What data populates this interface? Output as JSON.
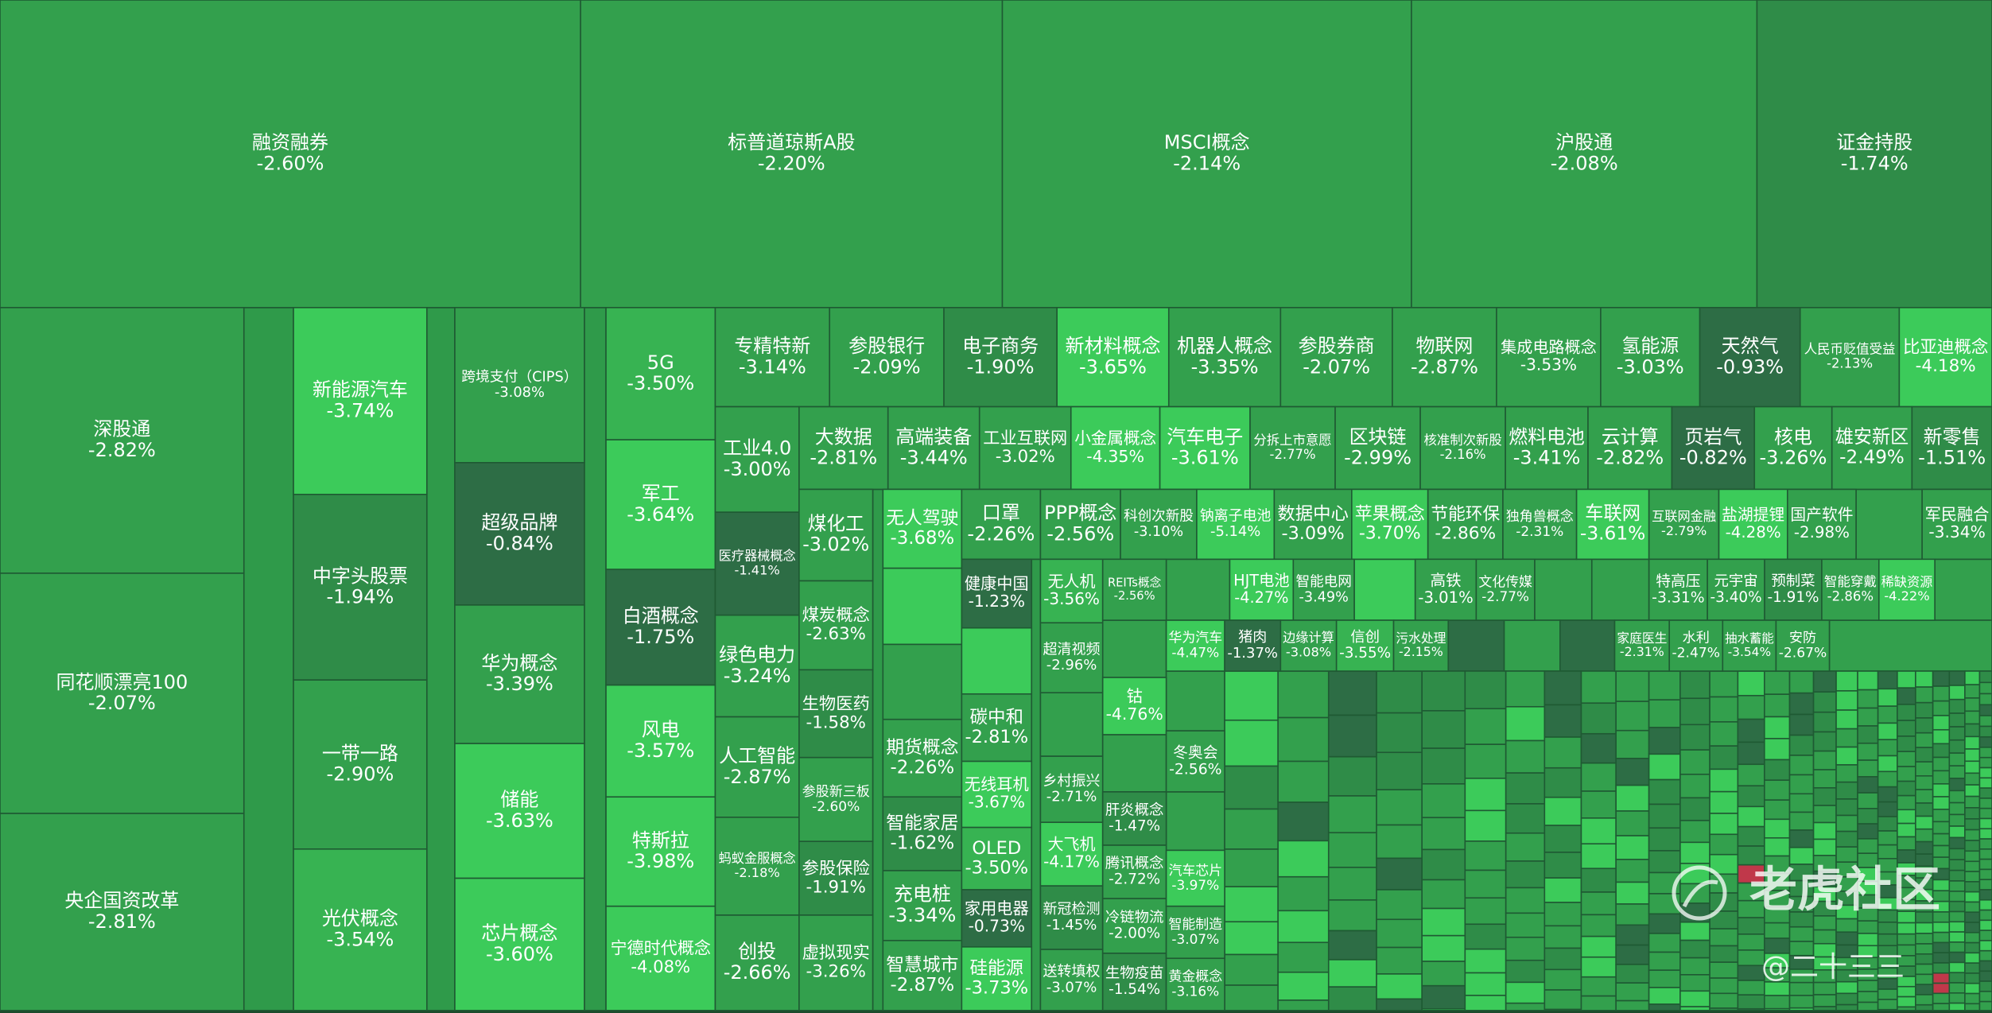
{
  "chart_data": {
    "type": "treemap",
    "categories": [
      "融资融券",
      "标普道琼斯A股",
      "MSCI概念",
      "沪股通",
      "证金持股",
      "深股通",
      "同花顺漂亮100",
      "央企国资改革",
      "新能源汽车",
      "中字头股票",
      "一带一路",
      "光伏概念",
      "跨境支付（CIPS）",
      "超级品牌",
      "华为概念",
      "储能",
      "芯片概念",
      "5G",
      "军工",
      "白酒概念",
      "风电",
      "特斯拉",
      "宁德时代概念",
      "专精特新",
      "参股银行",
      "电子商务",
      "新材料概念",
      "机器人概念",
      "参股券商",
      "物联网",
      "集成电路概念",
      "氢能源",
      "天然气",
      "人民币贬值受益",
      "比亚迪概念",
      "工业4.0",
      "医疗器械概念",
      "绿色电力",
      "人工智能",
      "蚂蚁金服概念",
      "创投",
      "大数据",
      "高端装备",
      "工业互联网",
      "小金属概念",
      "汽车电子",
      "分拆上市意愿",
      "区块链",
      "核准制次新股",
      "燃料电池",
      "云计算",
      "页岩气",
      "核电",
      "雄安新区",
      "新零售",
      "煤化工",
      "煤炭概念",
      "生物医药",
      "参股新三板",
      "参股保险",
      "虚拟现实",
      "无人驾驶",
      "期货概念",
      "智能家居",
      "充电桩",
      "智慧城市",
      "口罩",
      "PPP概念",
      "科创次新股",
      "钠离子电池",
      "数据中心",
      "苹果概念",
      "节能环保",
      "独角兽概念",
      "车联网",
      "互联网金融",
      "盐湖提锂",
      "国产软件",
      "军民融合",
      "健康中国",
      "碳中和",
      "无线耳机",
      "OLED",
      "家用电器",
      "硅能源",
      "无人机",
      "超清视频",
      "乡村振兴",
      "大飞机",
      "新冠检测",
      "送转填权",
      "REITs概念",
      "HJT电池",
      "智能电网",
      "高铁",
      "文化传媒",
      "特高压",
      "元宇宙",
      "预制菜",
      "智能穿戴",
      "稀缺资源",
      "钴",
      "肝炎概念",
      "腾讯概念",
      "冷链物流",
      "生物疫苗",
      "华为汽车",
      "猪肉",
      "边缘计算",
      "信创",
      "污水处理",
      "家庭医生",
      "水利",
      "抽水蓄能",
      "安防",
      "冬奥会",
      "汽车芯片",
      "智能制造",
      "黄金概念"
    ],
    "values": [
      -2.6,
      -2.2,
      -2.14,
      -2.08,
      -1.74,
      -2.82,
      -2.07,
      -2.81,
      -3.74,
      -1.94,
      -2.9,
      -3.54,
      -3.08,
      -0.84,
      -3.39,
      -3.63,
      -3.6,
      -3.5,
      -3.64,
      -1.75,
      -3.57,
      -3.98,
      -4.08,
      -3.14,
      -2.09,
      -1.9,
      -3.65,
      -3.35,
      -2.07,
      -2.87,
      -3.53,
      -3.03,
      -0.93,
      -2.13,
      -4.18,
      -3.0,
      -1.41,
      -3.24,
      -2.87,
      -2.18,
      -2.66,
      -2.81,
      -3.44,
      -3.02,
      -4.35,
      -3.61,
      -2.77,
      -2.99,
      -2.16,
      -3.41,
      -2.82,
      -0.82,
      -3.26,
      -2.49,
      -1.51,
      -3.02,
      -2.63,
      -1.58,
      -2.6,
      -1.91,
      -3.26,
      -3.68,
      -2.26,
      -1.62,
      -3.34,
      -2.87,
      -2.26,
      -2.56,
      -3.1,
      -5.14,
      -3.09,
      -3.7,
      -2.86,
      -2.31,
      -3.61,
      -2.79,
      -4.28,
      -2.98,
      -3.34,
      -1.23,
      -2.81,
      -3.67,
      -3.5,
      -0.73,
      -3.73,
      -3.56,
      -2.96,
      -2.71,
      -4.17,
      -1.45,
      -3.07,
      -2.56,
      -4.27,
      -3.49,
      -3.01,
      -2.77,
      -3.31,
      -3.4,
      -1.91,
      -2.86,
      -4.22,
      -4.76,
      -1.47,
      -2.72,
      -2.0,
      -1.54,
      -4.47,
      -1.37,
      -3.08,
      -3.55,
      -2.15,
      -2.31,
      -2.47,
      -3.54,
      -2.67,
      -2.56,
      -3.97,
      -3.07,
      -3.16
    ],
    "value_labels": [
      "-2.60%",
      "-2.20%",
      "-2.14%",
      "-2.08%",
      "-1.74%",
      "-2.82%",
      "-2.07%",
      "-2.81%",
      "-3.74%",
      "-1.94%",
      "-2.90%",
      "-3.54%",
      "-3.08%",
      "-0.84%",
      "-3.39%",
      "-3.63%",
      "-3.60%",
      "-3.50%",
      "-3.64%",
      "-1.75%",
      "-3.57%",
      "-3.98%",
      "-4.08%",
      "-3.14%",
      "-2.09%",
      "-1.90%",
      "-3.65%",
      "-3.35%",
      "-2.07%",
      "-2.87%",
      "-3.53%",
      "-3.03%",
      "-0.93%",
      "-2.13%",
      "-4.18%",
      "-3.00%",
      "-1.41%",
      "-3.24%",
      "-2.87%",
      "-2.18%",
      "-2.66%",
      "-2.81%",
      "-3.44%",
      "-3.02%",
      "-4.35%",
      "-3.61%",
      "-2.77%",
      "-2.99%",
      "-2.16%",
      "-3.41%",
      "-2.82%",
      "-0.82%",
      "-3.26%",
      "-2.49%",
      "-1.51%",
      "-3.02%",
      "-2.63%",
      "-1.58%",
      "-2.60%",
      "-1.91%",
      "-3.26%",
      "-3.68%",
      "-2.26%",
      "-1.62%",
      "-3.34%",
      "-2.87%",
      "-2.26%",
      "-2.56%",
      "-3.10%",
      "-5.14%",
      "-3.09%",
      "-3.70%",
      "-2.86%",
      "-2.31%",
      "-3.61%",
      "-2.79%",
      "-4.28%",
      "-2.98%",
      "-3.34%",
      "-1.23%",
      "-2.81%",
      "-3.67%",
      "-3.50%",
      "-0.73%",
      "-3.73%",
      "-3.56%",
      "-2.96%",
      "-2.71%",
      "-4.17%",
      "-1.45%",
      "-3.07%",
      "-2.56%",
      "-4.27%",
      "-3.49%",
      "-3.01%",
      "-2.77%",
      "-3.31%",
      "-3.40%",
      "-1.91%",
      "-2.86%",
      "-4.22%",
      "-4.76%",
      "-1.47%",
      "-2.72%",
      "-2.00%",
      "-1.54%",
      "-4.47%",
      "-1.37%",
      "-3.08%",
      "-3.55%",
      "-2.15%",
      "-2.31%",
      "-2.47%",
      "-3.54%",
      "-2.67%",
      "-2.56%",
      "-3.97%",
      "-3.07%",
      "-3.16%"
    ],
    "colors": [
      "#33a04d",
      "#33a04d",
      "#33a04d",
      "#33a04d",
      "#2f8c48",
      "#33a04d",
      "#33a04d",
      "#33a04d",
      "#3ccb5a",
      "#2f8c48",
      "#33a04d",
      "#37b352",
      "#33a04d",
      "#2d6d45",
      "#33a04d",
      "#3ccb5a",
      "#3ccb5a",
      "#37b352",
      "#3ccb5a",
      "#2d6d45",
      "#3ccb5a",
      "#3ccb5a",
      "#3ccb5a",
      "#33a04d",
      "#33a04d",
      "#2f8c48",
      "#3ccb5a",
      "#33a04d",
      "#33a04d",
      "#33a04d",
      "#33a04d",
      "#33a04d",
      "#2d6d45",
      "#33a04d",
      "#3ccb5a",
      "#33a04d",
      "#2d6d45",
      "#33a04d",
      "#33a04d",
      "#33a04d",
      "#33a04d",
      "#33a04d",
      "#33a04d",
      "#33a04d",
      "#3ccb5a",
      "#3ccb5a",
      "#33a04d",
      "#33a04d",
      "#33a04d",
      "#33a04d",
      "#33a04d",
      "#2d6d45",
      "#33a04d",
      "#33a04d",
      "#2f8c48",
      "#33a04d",
      "#33a04d",
      "#2f8c48",
      "#33a04d",
      "#2f8c48",
      "#33a04d",
      "#3ccb5a",
      "#33a04d",
      "#2f8c48",
      "#33a04d",
      "#33a04d",
      "#33a04d",
      "#33a04d",
      "#33a04d",
      "#3ccb5a",
      "#33a04d",
      "#3ccb5a",
      "#33a04d",
      "#33a04d",
      "#3ccb5a",
      "#33a04d",
      "#3ccb5a",
      "#33a04d",
      "#33a04d",
      "#2d6d45",
      "#33a04d",
      "#3ccb5a",
      "#37b352",
      "#2d6d45",
      "#3ccb5a",
      "#37b352",
      "#33a04d",
      "#33a04d",
      "#3ccb5a",
      "#2f8c48",
      "#33a04d",
      "#33a04d",
      "#3ccb5a",
      "#33a04d",
      "#33a04d",
      "#33a04d",
      "#33a04d",
      "#33a04d",
      "#2f8c48",
      "#33a04d",
      "#3ccb5a",
      "#3ccb5a",
      "#2f8c48",
      "#33a04d",
      "#33a04d",
      "#2f8c48",
      "#3ccb5a",
      "#2d6d45",
      "#33a04d",
      "#37b352",
      "#33a04d",
      "#33a04d",
      "#33a04d",
      "#33a04d",
      "#33a04d",
      "#33a04d",
      "#3ccb5a",
      "#33a04d",
      "#33a04d"
    ],
    "annotations": [
      "老虎社区",
      "@二十三三"
    ]
  }
}
